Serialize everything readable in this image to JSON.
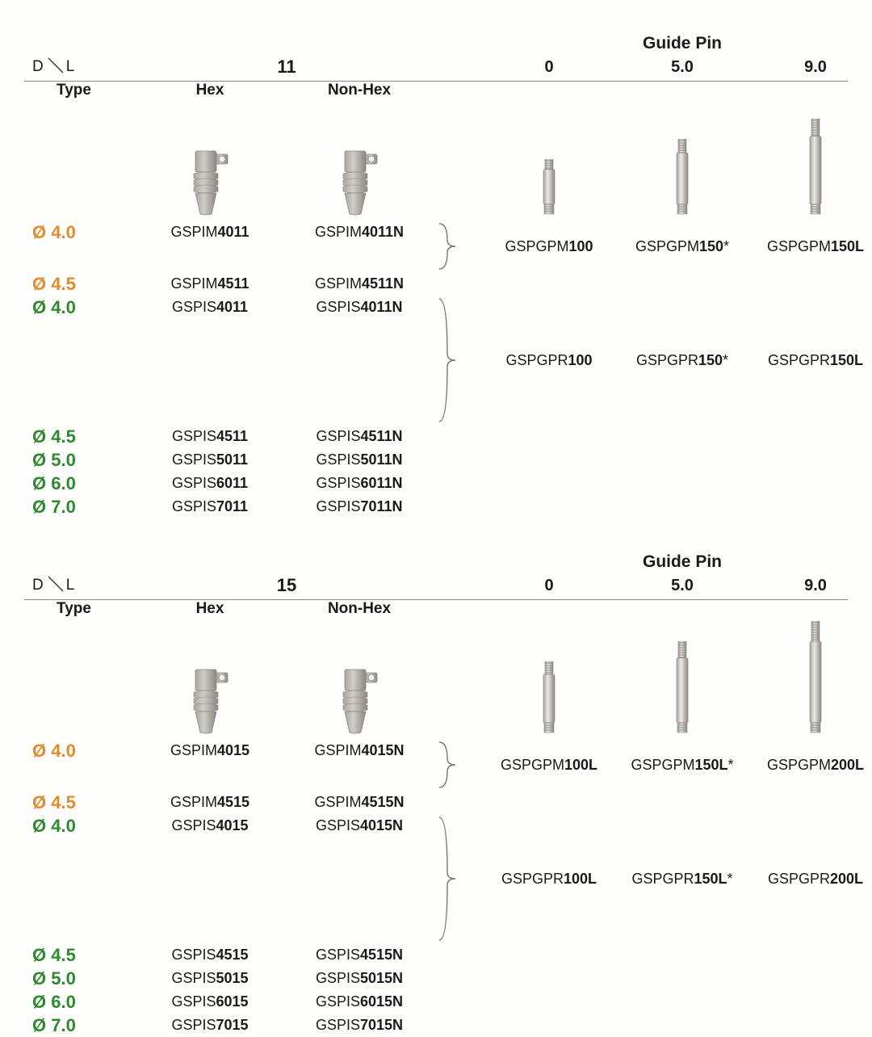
{
  "axis": {
    "d": "D",
    "l": "L",
    "type": "Type",
    "hex": "Hex",
    "nonhex": "Non-Hex",
    "guide_pin": "Guide Pin"
  },
  "colors": {
    "orange": "#e58a2b",
    "green": "#2e8a2e",
    "text": "#1a1a1a",
    "line": "#888888",
    "metal1": "#d0cdc8",
    "metal2": "#a8a49e",
    "metal3": "#8b8781"
  },
  "sections": [
    {
      "L": "11",
      "pin_headers": [
        "0",
        "5.0",
        "9.0"
      ],
      "pin_heights": [
        70,
        95,
        120
      ],
      "rows_orange": [
        {
          "dia": "Ø 4.0",
          "hex_pre": "GSPIM",
          "hex_b": "4011",
          "hex_suf": "",
          "non_pre": "GSPIM",
          "non_b": "4011N",
          "non_suf": ""
        },
        {
          "dia": "Ø 4.5",
          "hex_pre": "GSPIM",
          "hex_b": "4511",
          "hex_suf": "",
          "non_pre": "GSPIM",
          "non_b": "4511N",
          "non_suf": ""
        }
      ],
      "rows_green": [
        {
          "dia": "Ø 4.0",
          "hex_pre": "GSPIS",
          "hex_b": "4011",
          "hex_suf": "",
          "non_pre": "GSPIS",
          "non_b": "4011N",
          "non_suf": ""
        },
        {
          "dia": "Ø 4.5",
          "hex_pre": "GSPIS",
          "hex_b": "4511",
          "hex_suf": "",
          "non_pre": "GSPIS",
          "non_b": "4511N",
          "non_suf": ""
        },
        {
          "dia": "Ø 5.0",
          "hex_pre": "GSPIS",
          "hex_b": "5011",
          "hex_suf": "",
          "non_pre": "GSPIS",
          "non_b": "5011N",
          "non_suf": ""
        },
        {
          "dia": "Ø 6.0",
          "hex_pre": "GSPIS",
          "hex_b": "6011",
          "hex_suf": "",
          "non_pre": "GSPIS",
          "non_b": "6011N",
          "non_suf": ""
        },
        {
          "dia": "Ø 7.0",
          "hex_pre": "GSPIS",
          "hex_b": "7011",
          "hex_suf": "",
          "non_pre": "GSPIS",
          "non_b": "7011N",
          "non_suf": ""
        }
      ],
      "pins_orange": [
        {
          "pre": "GSPGPM",
          "b": "100",
          "suf": ""
        },
        {
          "pre": "GSPGPM",
          "b": "150",
          "suf": "*"
        },
        {
          "pre": "GSPGPM",
          "b": "150L",
          "suf": ""
        }
      ],
      "pins_green": [
        {
          "pre": "GSPGPR",
          "b": "100",
          "suf": ""
        },
        {
          "pre": "GSPGPR",
          "b": "150",
          "suf": "*"
        },
        {
          "pre": "GSPGPR",
          "b": "150L",
          "suf": ""
        }
      ]
    },
    {
      "L": "15",
      "pin_headers": [
        "0",
        "5.0",
        "9.0"
      ],
      "pin_heights": [
        90,
        115,
        140
      ],
      "rows_orange": [
        {
          "dia": "Ø 4.0",
          "hex_pre": "GSPIM",
          "hex_b": "4015",
          "hex_suf": "",
          "non_pre": "GSPIM",
          "non_b": "4015N",
          "non_suf": ""
        },
        {
          "dia": "Ø 4.5",
          "hex_pre": "GSPIM",
          "hex_b": "4515",
          "hex_suf": "",
          "non_pre": "GSPIM",
          "non_b": "4515N",
          "non_suf": ""
        }
      ],
      "rows_green": [
        {
          "dia": "Ø 4.0",
          "hex_pre": "GSPIS",
          "hex_b": "4015",
          "hex_suf": "",
          "non_pre": "GSPIS",
          "non_b": "4015N",
          "non_suf": ""
        },
        {
          "dia": "Ø 4.5",
          "hex_pre": "GSPIS",
          "hex_b": "4515",
          "hex_suf": "",
          "non_pre": "GSPIS",
          "non_b": "4515N",
          "non_suf": ""
        },
        {
          "dia": "Ø 5.0",
          "hex_pre": "GSPIS",
          "hex_b": "5015",
          "hex_suf": "",
          "non_pre": "GSPIS",
          "non_b": "5015N",
          "non_suf": ""
        },
        {
          "dia": "Ø 6.0",
          "hex_pre": "GSPIS",
          "hex_b": "6015",
          "hex_suf": "",
          "non_pre": "GSPIS",
          "non_b": "6015N",
          "non_suf": ""
        },
        {
          "dia": "Ø 7.0",
          "hex_pre": "GSPIS",
          "hex_b": "7015",
          "hex_suf": "",
          "non_pre": "GSPIS",
          "non_b": "7015N",
          "non_suf": ""
        }
      ],
      "pins_orange": [
        {
          "pre": "GSPGPM",
          "b": "100L",
          "suf": ""
        },
        {
          "pre": "GSPGPM",
          "b": "150L",
          "suf": "*"
        },
        {
          "pre": "GSPGPM",
          "b": "200L",
          "suf": ""
        }
      ],
      "pins_green": [
        {
          "pre": "GSPGPR",
          "b": "100L",
          "suf": ""
        },
        {
          "pre": "GSPGPR",
          "b": "150L",
          "suf": "*"
        },
        {
          "pre": "GSPGPR",
          "b": "200L",
          "suf": ""
        }
      ]
    }
  ]
}
